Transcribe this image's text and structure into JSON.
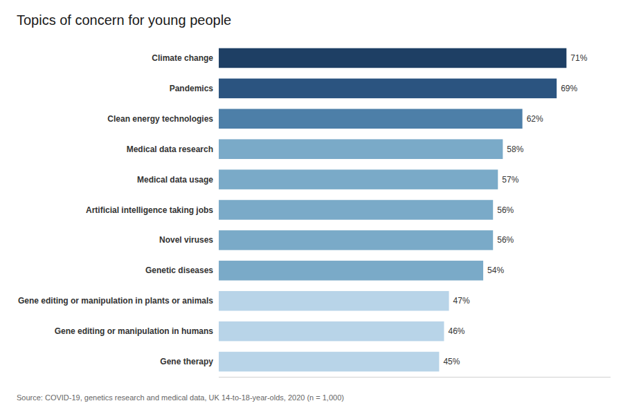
{
  "chart_data": {
    "type": "bar",
    "orientation": "horizontal",
    "title": "Topics of concern for young people",
    "source": "Source: COVID-19, genetics research and medical data, UK 14-to-18-year-olds, 2020 (n = 1,000)",
    "categories": [
      "Gene therapy",
      "Gene editing or manipulation in humans",
      "Gene editing or manipulation in plants or animals",
      "Genetic diseases",
      "Novel viruses",
      "Artificial intelligence taking jobs",
      "Medical data usage",
      "Medical data research",
      "Clean energy technologies",
      "Pandemics",
      "Climate change"
    ],
    "values": [
      45,
      46,
      47,
      54,
      56,
      56,
      57,
      58,
      62,
      69,
      71
    ],
    "value_labels": [
      "45%",
      "46%",
      "47%",
      "54%",
      "56%",
      "56%",
      "57%",
      "58%",
      "62%",
      "69%",
      "71%"
    ],
    "colors": [
      "#b8d4e8",
      "#b8d4e8",
      "#b8d4e8",
      "#7aaac8",
      "#7aaac8",
      "#7aaac8",
      "#7aaac8",
      "#7aaac8",
      "#4d7fa8",
      "#2b5480",
      "#1e3f64"
    ],
    "xlim": [
      0,
      80
    ],
    "data_labels": true,
    "tick_labels": "y",
    "grid": false
  }
}
